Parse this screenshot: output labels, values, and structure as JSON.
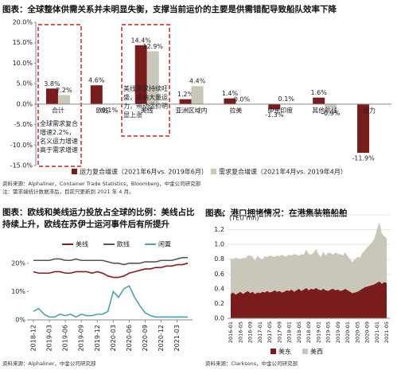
{
  "chart_data": [
    {
      "type": "bar",
      "title": "图表：全球整体供需关系并未明显失衡，支撑当前运价的主要是供需错配导致船队效率下降",
      "categories": [
        "合计",
        "欧线",
        "美线",
        "亚洲区域内",
        "拉美",
        "中东印度",
        "其他航线",
        "运力"
      ],
      "series": [
        {
          "name": "运力复合增速（2021年6月vs. 2019年6月）",
          "color": "#7b1c1c",
          "values": [
            3.8,
            4.6,
            14.4,
            1.2,
            1.4,
            -1.3,
            1.6,
            -11.9
          ],
          "value_labels": [
            "3.8%",
            "4.6%",
            "14.4%",
            "1.2%",
            "1.4%",
            "-1.3%",
            "1.6%",
            "-11.9%"
          ]
        },
        {
          "name": "需求复合增速（2021年4月vs. 2019年4月）",
          "color": "#c9c7b9",
          "values": [
            2.2,
            -0.1,
            12.9,
            4.4,
            0.0,
            0.1,
            -0.9,
            null
          ],
          "value_labels": [
            "2.2%",
            "-0.1%",
            "12.9%",
            "4.4%",
            "0.0%",
            "0.1%",
            "-0.9%",
            null
          ]
        }
      ],
      "ylim": [
        -15,
        20
      ],
      "yticks": [
        {
          "value": -15,
          "label": "-15.0%"
        },
        {
          "value": -10,
          "label": "-10.0%"
        },
        {
          "value": -5,
          "label": "-5.0%"
        },
        {
          "value": 0,
          "label": "0.0%"
        },
        {
          "value": 5,
          "label": "5.0%"
        },
        {
          "value": 10,
          "label": "10.0%"
        },
        {
          "value": 15,
          "label": "15.0%"
        },
        {
          "value": 20,
          "label": "20.0%"
        }
      ],
      "annotations": [
        "全球需求复合增速2.2%，名义运力增速高于需求增速",
        "美线需求持续旺盛，吸纳大量运力，带动运价明显上涨"
      ],
      "source": "资料来源：Alphaliner，Container Trade Statistics，Bloomberg，中金公司研究部",
      "note": "注：需求端统计数据滞后，目前只更新到 2021 年 4 月。"
    },
    {
      "type": "line",
      "title": "图表：欧线和美线运力投放占全球的比例：美线占比持续上升，欧线在苏伊士运河事件后有所提升",
      "categories": [
        "2018-12",
        null,
        null,
        "2019-03",
        null,
        null,
        "2019-06",
        null,
        null,
        "2019-09",
        null,
        null,
        "2019-12",
        null,
        null,
        "2020-03",
        null,
        null,
        "2020-06",
        null,
        null,
        "2020-09",
        null,
        null,
        "2020-12",
        null,
        null,
        "2021-03",
        null,
        null
      ],
      "series": [
        {
          "name": "美线",
          "color": "#8b1a1a",
          "values": [
            17,
            16.5,
            16.5,
            16.5,
            17,
            17,
            16.5,
            16.5,
            17,
            17,
            17,
            16.5,
            17,
            16.5,
            15.5,
            15,
            15,
            15.5,
            16.5,
            17,
            17.5,
            18,
            18,
            18.5,
            18.5,
            19,
            19,
            19.5,
            19.5,
            20
          ]
        },
        {
          "name": "欧线",
          "color": "#555555",
          "values": [
            21,
            21,
            21,
            21,
            21.5,
            21.5,
            21,
            21,
            21.5,
            21,
            21,
            21,
            21,
            21,
            20.5,
            20,
            20,
            19.5,
            20,
            20,
            20,
            20.5,
            20.5,
            20.5,
            21,
            21,
            21,
            21.5,
            22,
            22
          ]
        },
        {
          "name": "闲置",
          "color": "#4ea3a8",
          "values": [
            3,
            4,
            2,
            1,
            1,
            2,
            1.5,
            2,
            1,
            2,
            1.5,
            1.5,
            2,
            2,
            3,
            10,
            8,
            11,
            12,
            8,
            5,
            2.5,
            1.5,
            1,
            1,
            1,
            1,
            1,
            1,
            1
          ]
        }
      ],
      "ylim": [
        0,
        25
      ],
      "yticks": [
        {
          "value": 0,
          "label": "0%"
        },
        {
          "value": 10,
          "label": "10%"
        },
        {
          "value": 20,
          "label": "20%"
        }
      ],
      "source": "资料来源：Alphaliner，中金公司研究部"
    },
    {
      "type": "area",
      "title": "图表：港口拥堵情况：在港集装箱船舶",
      "ylabel": "(TEU mn)",
      "categories": [
        "2016-01",
        null,
        null,
        null,
        "2016-05",
        null,
        null,
        null,
        "2016-09",
        null,
        null,
        null,
        "2017-01",
        null,
        null,
        null,
        "2017-05",
        null,
        null,
        null,
        "2017-09",
        null,
        null,
        null,
        "2018-01",
        null,
        null,
        null,
        "2018-05",
        null,
        null,
        null,
        "2018-09",
        null,
        null,
        null,
        "2019-01",
        null,
        null,
        null,
        "2019-05",
        null,
        null,
        null,
        "2019-09",
        null,
        null,
        null,
        "2020-01",
        null,
        null,
        null,
        "2020-05",
        null,
        null,
        null,
        "2020-09",
        null,
        null,
        null,
        "2021-01",
        null,
        null,
        null,
        "2021-05"
      ],
      "series": [
        {
          "name": "美东",
          "color": "#7b1c1c",
          "values": [
            0.33,
            0.35,
            0.32,
            0.34,
            0.36,
            0.33,
            0.35,
            0.37,
            0.34,
            0.36,
            0.33,
            0.35,
            0.34,
            0.36,
            0.35,
            0.37,
            0.35,
            0.36,
            0.38,
            0.36,
            0.37,
            0.35,
            0.36,
            0.38,
            0.37,
            0.39,
            0.36,
            0.38,
            0.4,
            0.37,
            0.39,
            0.41,
            0.38,
            0.4,
            0.39,
            0.41,
            0.39,
            0.38,
            0.4,
            0.38,
            0.37,
            0.39,
            0.4,
            0.38,
            0.39,
            0.37,
            0.38,
            0.4,
            0.38,
            0.36,
            0.34,
            0.35,
            0.36,
            0.38,
            0.4,
            0.42,
            0.43,
            0.44,
            0.45,
            0.46,
            0.48,
            0.5,
            0.47,
            0.49,
            0.48
          ]
        },
        {
          "name": "美西",
          "color": "#c9c7b9",
          "values": [
            0.48,
            0.45,
            0.5,
            0.47,
            0.44,
            0.49,
            0.46,
            0.48,
            0.51,
            0.47,
            0.45,
            0.5,
            0.47,
            0.44,
            0.49,
            0.46,
            0.5,
            0.48,
            0.45,
            0.49,
            0.47,
            0.51,
            0.48,
            0.46,
            0.49,
            0.46,
            0.51,
            0.48,
            0.45,
            0.5,
            0.47,
            0.52,
            0.49,
            0.46,
            0.5,
            0.53,
            0.48,
            0.45,
            0.5,
            0.47,
            0.52,
            0.49,
            0.46,
            0.51,
            0.48,
            0.5,
            0.47,
            0.49,
            0.46,
            0.44,
            0.42,
            0.45,
            0.47,
            0.44,
            0.48,
            0.5,
            0.53,
            0.55,
            0.58,
            0.62,
            0.72,
            0.8,
            0.68,
            0.62,
            0.6
          ]
        }
      ],
      "ylim": [
        0,
        1.4
      ],
      "yticks": [
        {
          "value": 0,
          "label": "0.0"
        },
        {
          "value": 0.2,
          "label": "0.2"
        },
        {
          "value": 0.4,
          "label": "0.4"
        },
        {
          "value": 0.6,
          "label": "0.6"
        },
        {
          "value": 0.8,
          "label": "0.8"
        },
        {
          "value": 1.0,
          "label": "1.0"
        },
        {
          "value": 1.2,
          "label": "1.2"
        },
        {
          "value": 1.4,
          "label": "1.4"
        }
      ],
      "grid": true,
      "source": "资料来源：Clarksons，中金公司研究部"
    }
  ]
}
